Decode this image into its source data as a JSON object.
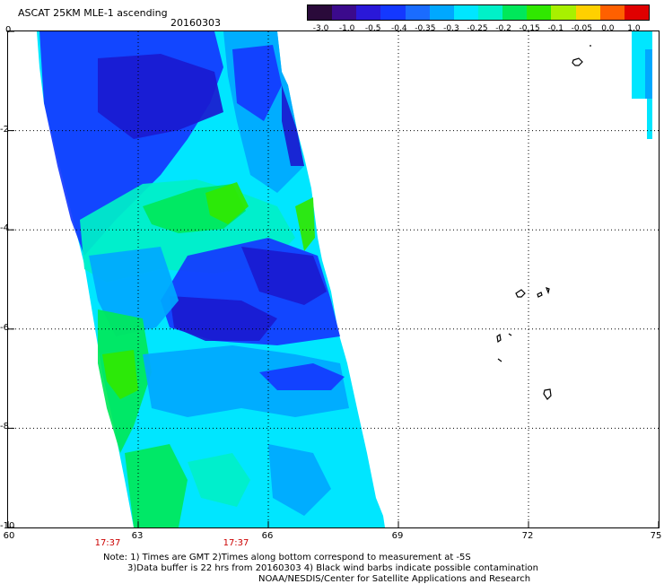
{
  "header": {
    "title": "ASCAT 25KM MLE-1 ascending",
    "date": "20160303"
  },
  "colorbar": {
    "labels": [
      "-3.0",
      "-1.0",
      "-0.5",
      "-0.4",
      "-0.35",
      "-0.3",
      "-0.25",
      "-0.2",
      "-0.15",
      "-0.1",
      "-0.05",
      "0.0",
      "1.0"
    ],
    "colors": [
      "#2a0a3a",
      "#3b0a8c",
      "#2a18d8",
      "#1438ff",
      "#1a6cff",
      "#00a8ff",
      "#00e6ff",
      "#00f0c8",
      "#00e85a",
      "#30e800",
      "#a8f000",
      "#ffd000",
      "#ff6000",
      "#e00000"
    ]
  },
  "axes": {
    "x_ticks": [
      "60",
      "63",
      "66",
      "69",
      "72",
      "75"
    ],
    "y_ticks": [
      "0",
      "-2",
      "-4",
      "-6",
      "-8",
      "-10"
    ]
  },
  "time_labels": [
    "17:37",
    "17:37"
  ],
  "footer": {
    "line1": "Note: 1) Times are GMT 2)Times along bottom correspond to measurement at -5S",
    "line2": "3)Data buffer is 22 hrs from 20160303 4) Black wind barbs indicate possible contamination",
    "line3": "NOAA/NESDIS/Center for Satellite Applications and Research"
  },
  "palette": {
    "cyan": "#00e6ff",
    "lightblue": "#00a8ff",
    "blue": "#1438ff",
    "darkblue": "#1a1ad0",
    "green": "#00e85a",
    "greenbright": "#30e800",
    "turquoise": "#00f0c8"
  }
}
